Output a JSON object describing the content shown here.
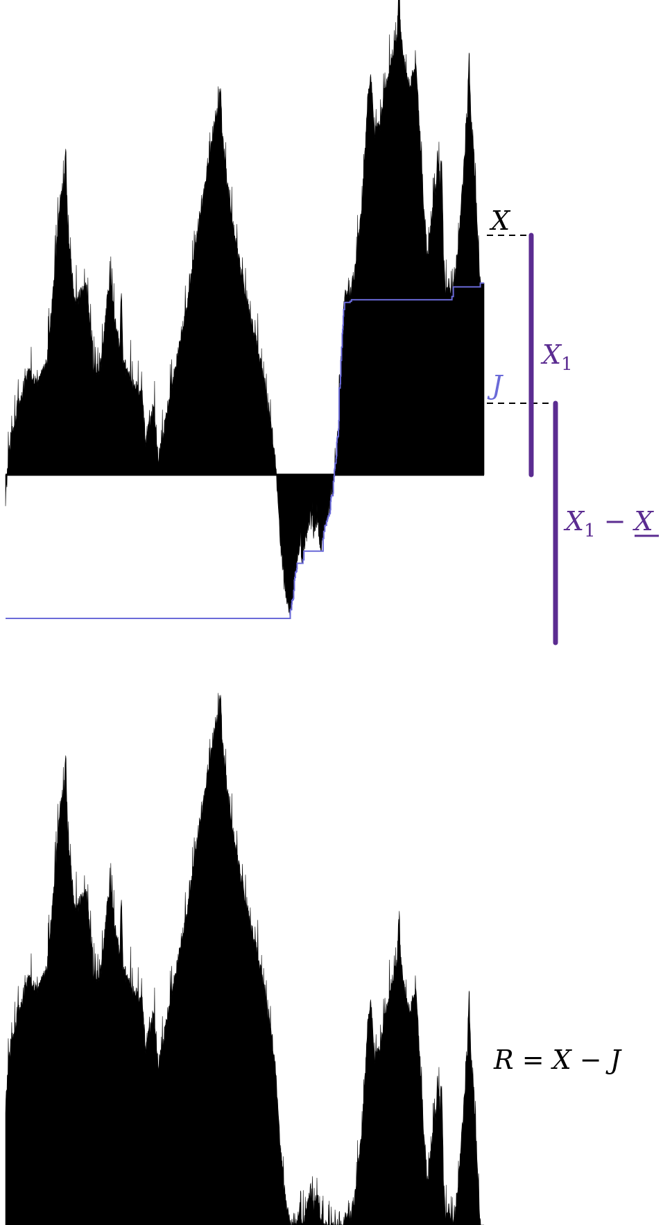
{
  "colors": {
    "path": "#000000",
    "running_min": "#6a6ad8",
    "brace": "#5b2c91",
    "dashed": "#000000",
    "background": "#ffffff"
  },
  "labels": {
    "x": {
      "symbol": "X"
    },
    "j": {
      "symbol": "J"
    },
    "x1": {
      "symbol": "X",
      "sub": "1"
    },
    "x1_minus_xmin": {
      "lhs": "X",
      "sub": "1",
      "op": " − ",
      "rhs": "X"
    },
    "reflected": {
      "lhs": "R",
      "eq": " = ",
      "a": "X",
      "op": " − ",
      "b": "J"
    }
  }
}
